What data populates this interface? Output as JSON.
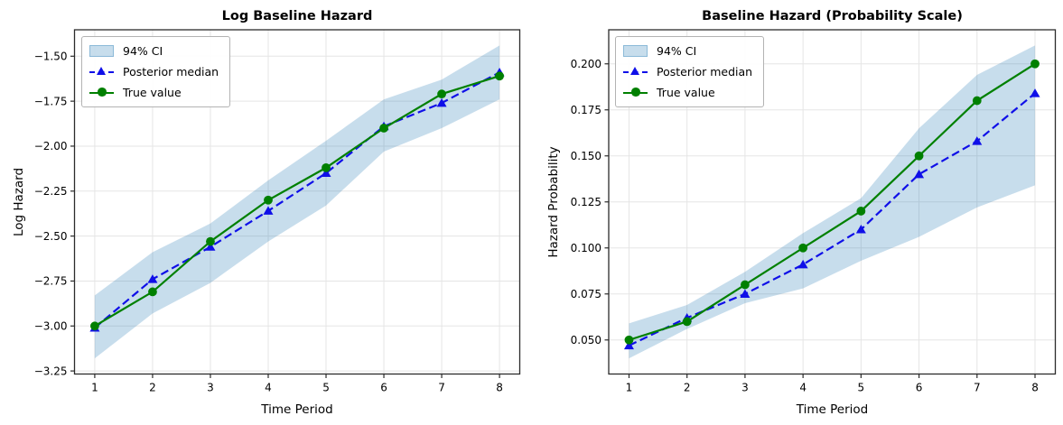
{
  "figure": {
    "background": "#ffffff"
  },
  "colors": {
    "ci_fill": "rgba(31,119,180,0.25)",
    "posterior_median": "#0f0fe8",
    "true_value": "#008000",
    "grid": "#e5e5e5",
    "spine": "#2b2b2b",
    "text": "#000000"
  },
  "legend": {
    "ci_label": "94% CI",
    "median_label": "Posterior median",
    "true_label": "True value"
  },
  "chart_data": [
    {
      "type": "line",
      "title": "Log Baseline Hazard",
      "xlabel": "Time Period",
      "ylabel": "Log Hazard",
      "x": [
        1,
        2,
        3,
        4,
        5,
        6,
        7,
        8
      ],
      "series": [
        {
          "name": "94% CI",
          "style": "band",
          "lower": [
            -3.18,
            -2.93,
            -2.76,
            -2.53,
            -2.33,
            -2.03,
            -1.9,
            -1.74
          ],
          "upper": [
            -2.83,
            -2.59,
            -2.43,
            -2.19,
            -1.97,
            -1.74,
            -1.63,
            -1.44
          ]
        },
        {
          "name": "Posterior median",
          "style": "dashed-triangle",
          "values": [
            -3.01,
            -2.74,
            -2.56,
            -2.36,
            -2.15,
            -1.89,
            -1.76,
            -1.59
          ]
        },
        {
          "name": "True value",
          "style": "solid-circle",
          "values": [
            -3.0,
            -2.81,
            -2.53,
            -2.3,
            -2.12,
            -1.9,
            -1.71,
            -1.61
          ]
        }
      ],
      "xlim": [
        0.65,
        8.35
      ],
      "ylim": [
        -3.267,
        -1.353
      ],
      "xticks": [
        1,
        2,
        3,
        4,
        5,
        6,
        7,
        8
      ],
      "xtick_labels": [
        "1",
        "2",
        "3",
        "4",
        "5",
        "6",
        "7",
        "8"
      ],
      "yticks": [
        -1.5,
        -1.75,
        -2.0,
        -2.25,
        -2.5,
        -2.75,
        -3.0,
        -3.25
      ],
      "ytick_labels": [
        "−1.50",
        "−1.75",
        "−2.00",
        "−2.25",
        "−2.50",
        "−2.75",
        "−3.00",
        "−3.25"
      ],
      "grid": true,
      "legend_position": "upper left"
    },
    {
      "type": "line",
      "title": "Baseline Hazard (Probability Scale)",
      "xlabel": "Time Period",
      "ylabel": "Hazard Probability",
      "x": [
        1,
        2,
        3,
        4,
        5,
        6,
        7,
        8
      ],
      "series": [
        {
          "name": "94% CI",
          "style": "band",
          "lower": [
            0.04,
            0.056,
            0.07,
            0.078,
            0.093,
            0.106,
            0.122,
            0.134
          ],
          "upper": [
            0.059,
            0.069,
            0.087,
            0.108,
            0.127,
            0.165,
            0.194,
            0.21
          ]
        },
        {
          "name": "Posterior median",
          "style": "dashed-triangle",
          "values": [
            0.047,
            0.062,
            0.075,
            0.091,
            0.11,
            0.14,
            0.158,
            0.184
          ]
        },
        {
          "name": "True value",
          "style": "solid-circle",
          "values": [
            0.05,
            0.06,
            0.08,
            0.1,
            0.12,
            0.15,
            0.18,
            0.2
          ]
        }
      ],
      "xlim": [
        0.65,
        8.35
      ],
      "ylim": [
        0.0315,
        0.2185
      ],
      "xticks": [
        1,
        2,
        3,
        4,
        5,
        6,
        7,
        8
      ],
      "xtick_labels": [
        "1",
        "2",
        "3",
        "4",
        "5",
        "6",
        "7",
        "8"
      ],
      "yticks": [
        0.2,
        0.175,
        0.15,
        0.125,
        0.1,
        0.075,
        0.05
      ],
      "ytick_labels": [
        "0.200",
        "0.175",
        "0.150",
        "0.125",
        "0.100",
        "0.075",
        "0.050"
      ],
      "grid": true,
      "legend_position": "upper left"
    }
  ]
}
